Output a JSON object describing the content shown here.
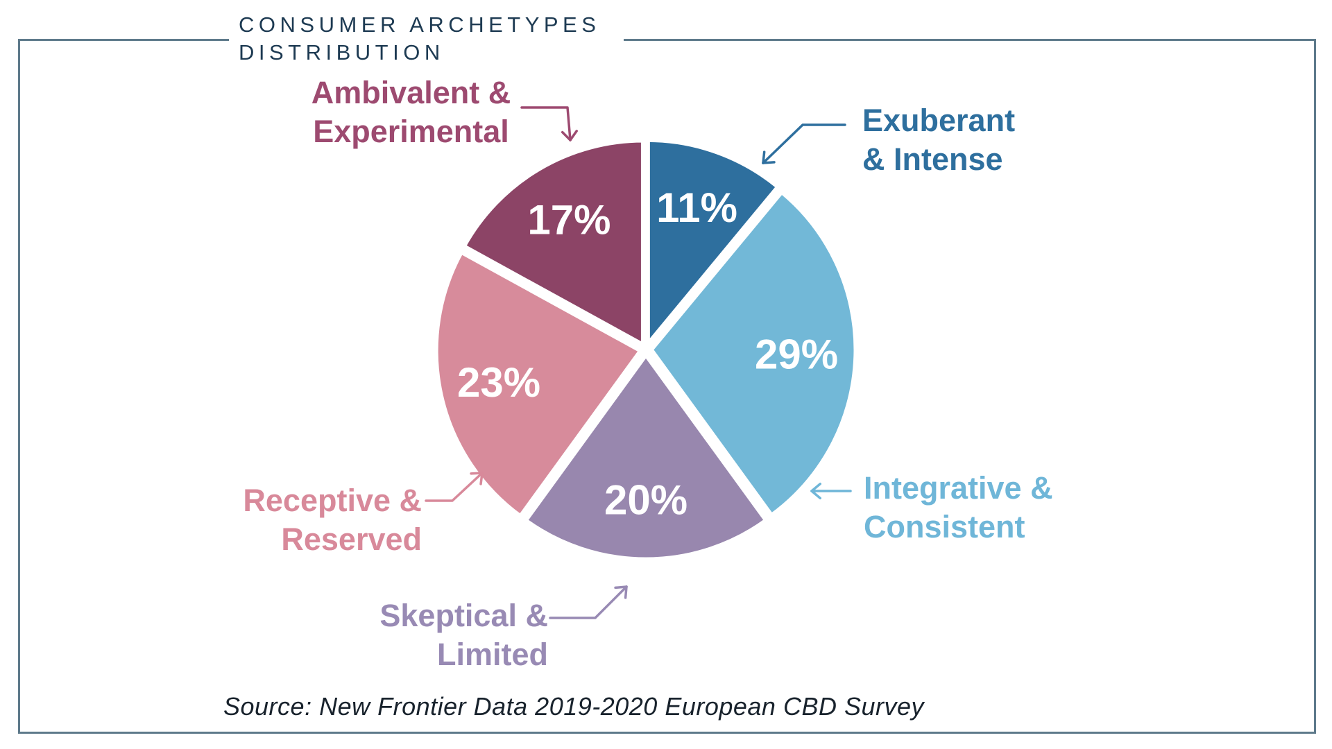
{
  "title": {
    "line1": "CONSUMER ARCHETYPES",
    "line2": "DISTRIBUTION"
  },
  "source": "Source: New Frontier Data 2019-2020 European CBD Survey",
  "colors": {
    "frame_border": "#5e7a8b",
    "title_text": "#1d3a52",
    "source_text": "#18222c",
    "percent_text": "#ffffff"
  },
  "chart_data": {
    "type": "pie",
    "title": "Consumer Archetypes Distribution",
    "start_angle_deg": 0,
    "direction": "clockwise",
    "slices": [
      {
        "name": "Exuberant & Intense",
        "value": 11,
        "pct_label": "11%",
        "color": "#2e6f9e",
        "label_color": "#2e6f9e",
        "label_lines": [
          "Exuberant",
          "& Intense"
        ]
      },
      {
        "name": "Integrative & Consistent",
        "value": 29,
        "pct_label": "29%",
        "color": "#72b8d7",
        "label_color": "#6fb6d8",
        "label_lines": [
          "Integrative &",
          "Consistent"
        ]
      },
      {
        "name": "Skeptical & Limited",
        "value": 20,
        "pct_label": "20%",
        "color": "#9887ae",
        "label_color": "#988ab4",
        "label_lines": [
          "Skeptical &",
          "Limited"
        ]
      },
      {
        "name": "Receptive & Reserved",
        "value": 23,
        "pct_label": "23%",
        "color": "#d78b9b",
        "label_color": "#d8899a",
        "label_lines": [
          "Receptive &",
          "Reserved"
        ]
      },
      {
        "name": "Ambivalent & Experimental",
        "value": 17,
        "pct_label": "17%",
        "color": "#8c4466",
        "label_color": "#9d4a70",
        "label_lines": [
          "Ambivalent &",
          "Experimental"
        ]
      }
    ]
  }
}
